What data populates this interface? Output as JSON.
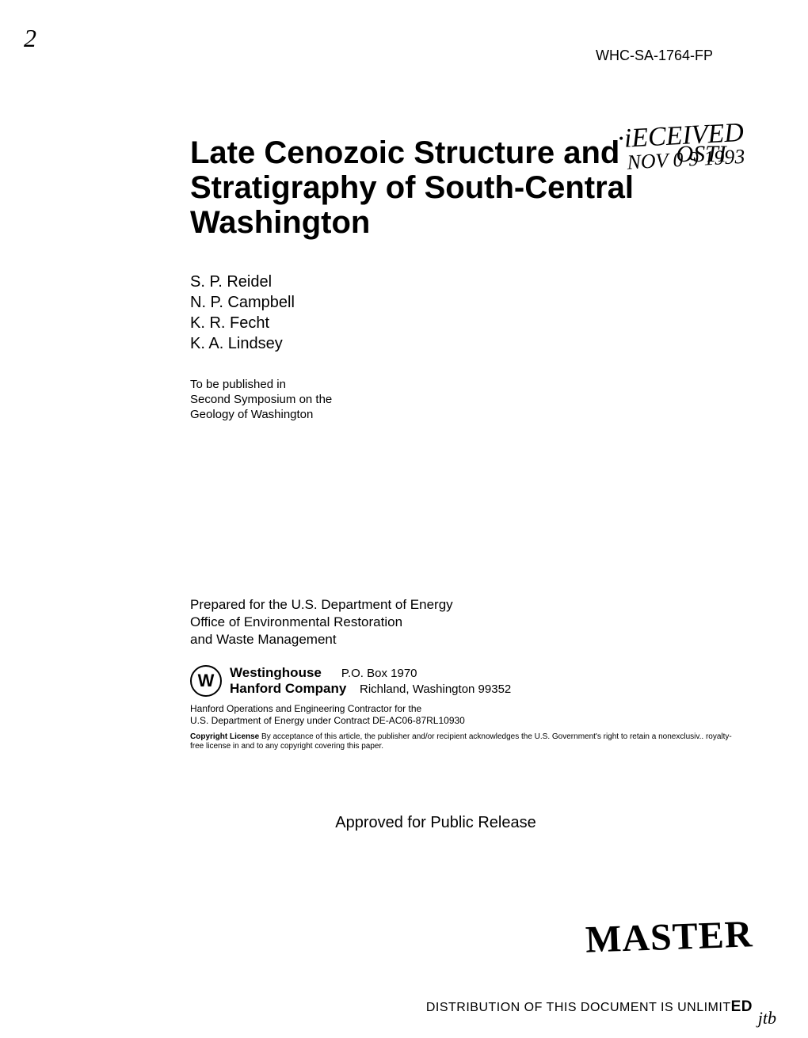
{
  "handwritten_mark": "2",
  "doc_id": "WHC-SA-1764-FP",
  "stamp": {
    "received": "·iECEIVED",
    "date": "NOV 0 9 1993",
    "osti": "OSTI"
  },
  "title_line1": "Late Cenozoic Structure and",
  "title_line2": "Stratigraphy of South-Central",
  "title_line3": "Washington",
  "authors": {
    "a1": "S. P. Reidel",
    "a2": "N. P. Campbell",
    "a3": "K. R. Fecht",
    "a4": "K. A. Lindsey"
  },
  "publish_note": {
    "l1": "To be published in",
    "l2": "Second Symposium on the",
    "l3": "Geology of Washington"
  },
  "prepared": {
    "l1": "Prepared for the U.S. Department of Energy",
    "l2": "Office of Environmental Restoration",
    "l3": "and Waste Management"
  },
  "logo_letter": "W",
  "company": {
    "westinghouse": "Westinghouse",
    "hanford": "Hanford Company",
    "pobox": "P.O. Box 1970",
    "address": "Richland, Washington 99352"
  },
  "contractor": {
    "l1": "Hanford Operations and Engineering Contractor for the",
    "l2": "U.S. Department of Energy under Contract DE-AC06-87RL10930"
  },
  "copyright": {
    "label": "Copyright License",
    "text": "By acceptance of this article, the publisher and/or recipient acknowledges the U.S. Government's right to retain a nonexclusiv.. royalty-free license in and to any copyright covering this paper."
  },
  "approved": "Approved for Public Release",
  "master": "MASTER",
  "distribution_prefix": "DISTRIBUTION OF THIS DOCUMENT IS UNLIMIT",
  "distribution_suffix": "ED",
  "scribble": "jtb",
  "colors": {
    "background": "#ffffff",
    "text": "#000000"
  },
  "typography": {
    "title_fontsize": 40,
    "body_fontsize": 17,
    "small_fontsize": 12,
    "tiny_fontsize": 10,
    "master_fontsize": 48
  }
}
